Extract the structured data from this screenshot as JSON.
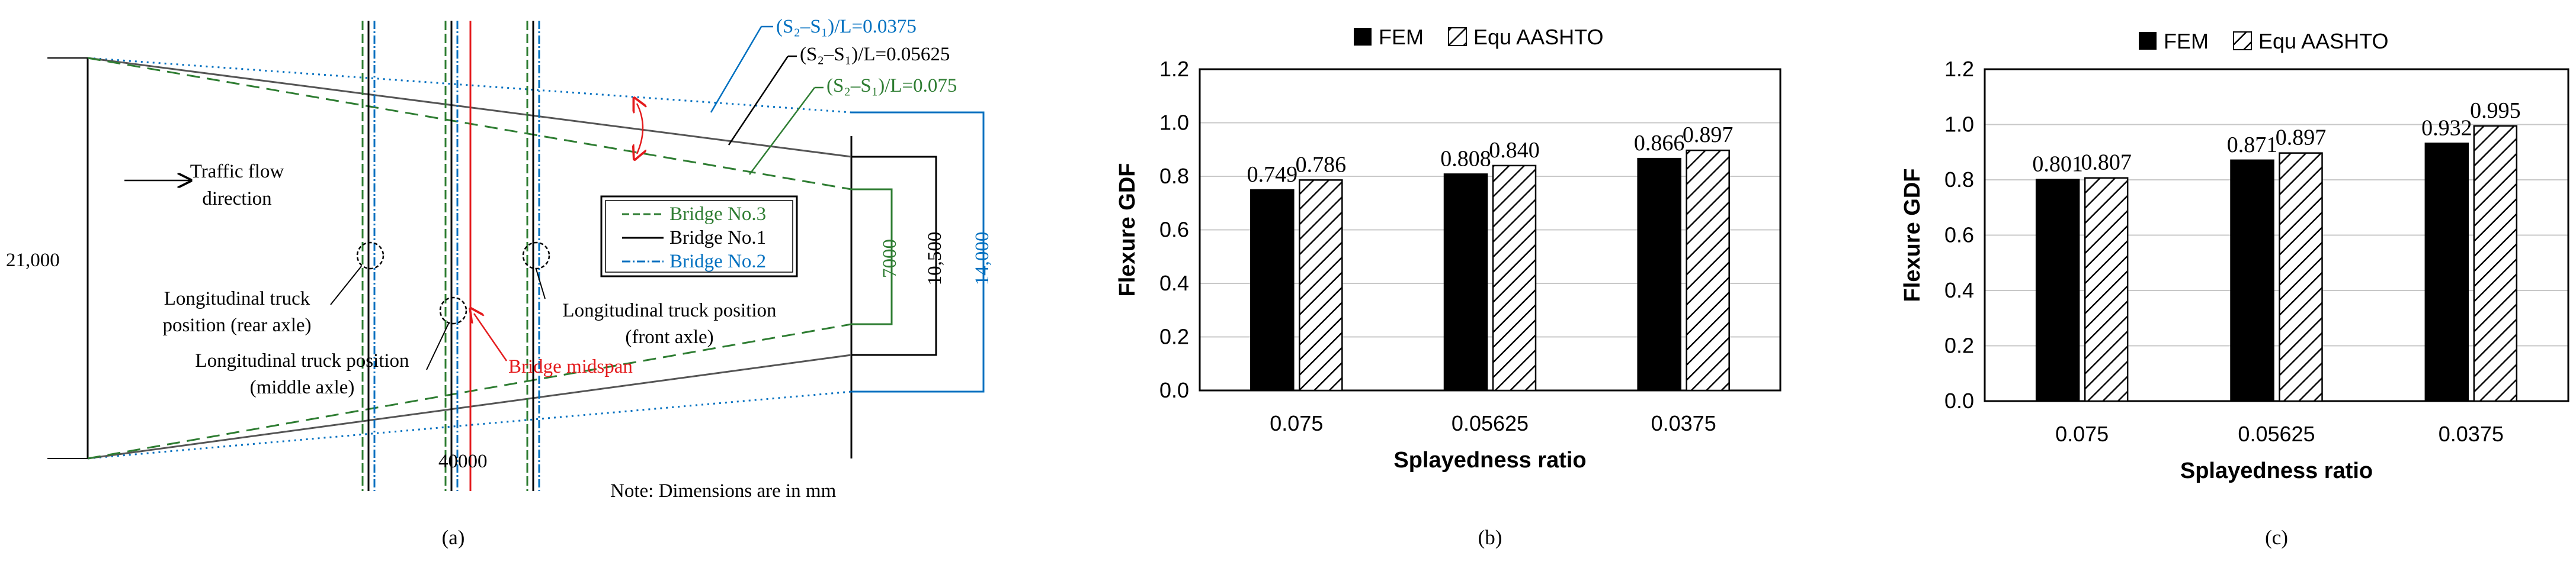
{
  "panel_a": {
    "caption": "(a)",
    "splay_labels": [
      {
        "text": "(S₂–S₁)/L=0.0375",
        "color": "#0070c0"
      },
      {
        "text": "(S₂–S₁)/L=0.05625",
        "color": "#000000"
      },
      {
        "text": "(S₂–S₁)/L=0.075",
        "color": "#2e7d32"
      }
    ],
    "traffic_flow": [
      "Traffic flow",
      "direction"
    ],
    "legend": [
      {
        "text": "Bridge No.3",
        "color": "#2e7d32"
      },
      {
        "text": "Bridge No.1",
        "color": "#000000"
      },
      {
        "text": "Bridge No.2",
        "color": "#0070c0"
      }
    ],
    "dim_left": "21,000",
    "dim_bottom": "40000",
    "dim_7000": "7000",
    "dim_10500": "10,500",
    "dim_14000": "14,000",
    "rear_axle": [
      "Longitudinal truck",
      "position (rear axle)"
    ],
    "middle_axle": [
      "Longitudinal truck position",
      "(middle axle)"
    ],
    "front_axle": [
      "Longitudinal truck position",
      "(front axle)"
    ],
    "midspan": "Bridge midspan",
    "note": "Note: Dimensions are in mm"
  },
  "colors": {
    "fem": "#000000",
    "green": "#2e7d32",
    "blue": "#0070c0",
    "red": "#e41a1c"
  },
  "chart_data": [
    {
      "type": "bar",
      "panel": "(b)",
      "categories": [
        "0.075",
        "0.05625",
        "0.0375"
      ],
      "series": [
        {
          "name": "FEM",
          "values": [
            0.749,
            0.808,
            0.866
          ]
        },
        {
          "name": "Equ AASHTO",
          "values": [
            0.786,
            0.84,
            0.897
          ]
        }
      ],
      "data_labels": {
        "FEM": [
          "0.749",
          "0.808",
          "0.866"
        ],
        "Equ AASHTO": [
          "0.786",
          "0.840",
          "0.897"
        ]
      },
      "xlabel": "Splayedness ratio",
      "ylabel": "Flexure GDF",
      "ylim": [
        0,
        1.2
      ],
      "yticks": [
        "0.0",
        "0.2",
        "0.4",
        "0.6",
        "0.8",
        "1.0",
        "1.2"
      ],
      "grid": true,
      "legend": "top"
    },
    {
      "type": "bar",
      "panel": "(c)",
      "categories": [
        "0.075",
        "0.05625",
        "0.0375"
      ],
      "series": [
        {
          "name": "FEM",
          "values": [
            0.801,
            0.871,
            0.932
          ]
        },
        {
          "name": "Equ AASHTO",
          "values": [
            0.807,
            0.897,
            0.995
          ]
        }
      ],
      "data_labels": {
        "FEM": [
          "0.801",
          "0.871",
          "0.932"
        ],
        "Equ AASHTO": [
          "0.807",
          "0.897",
          "0.995"
        ]
      },
      "xlabel": "Splayedness ratio",
      "ylabel": "Flexure GDF",
      "ylim": [
        0,
        1.2
      ],
      "yticks": [
        "0.0",
        "0.2",
        "0.4",
        "0.6",
        "0.8",
        "1.0",
        "1.2"
      ],
      "grid": true,
      "legend": "top"
    }
  ]
}
